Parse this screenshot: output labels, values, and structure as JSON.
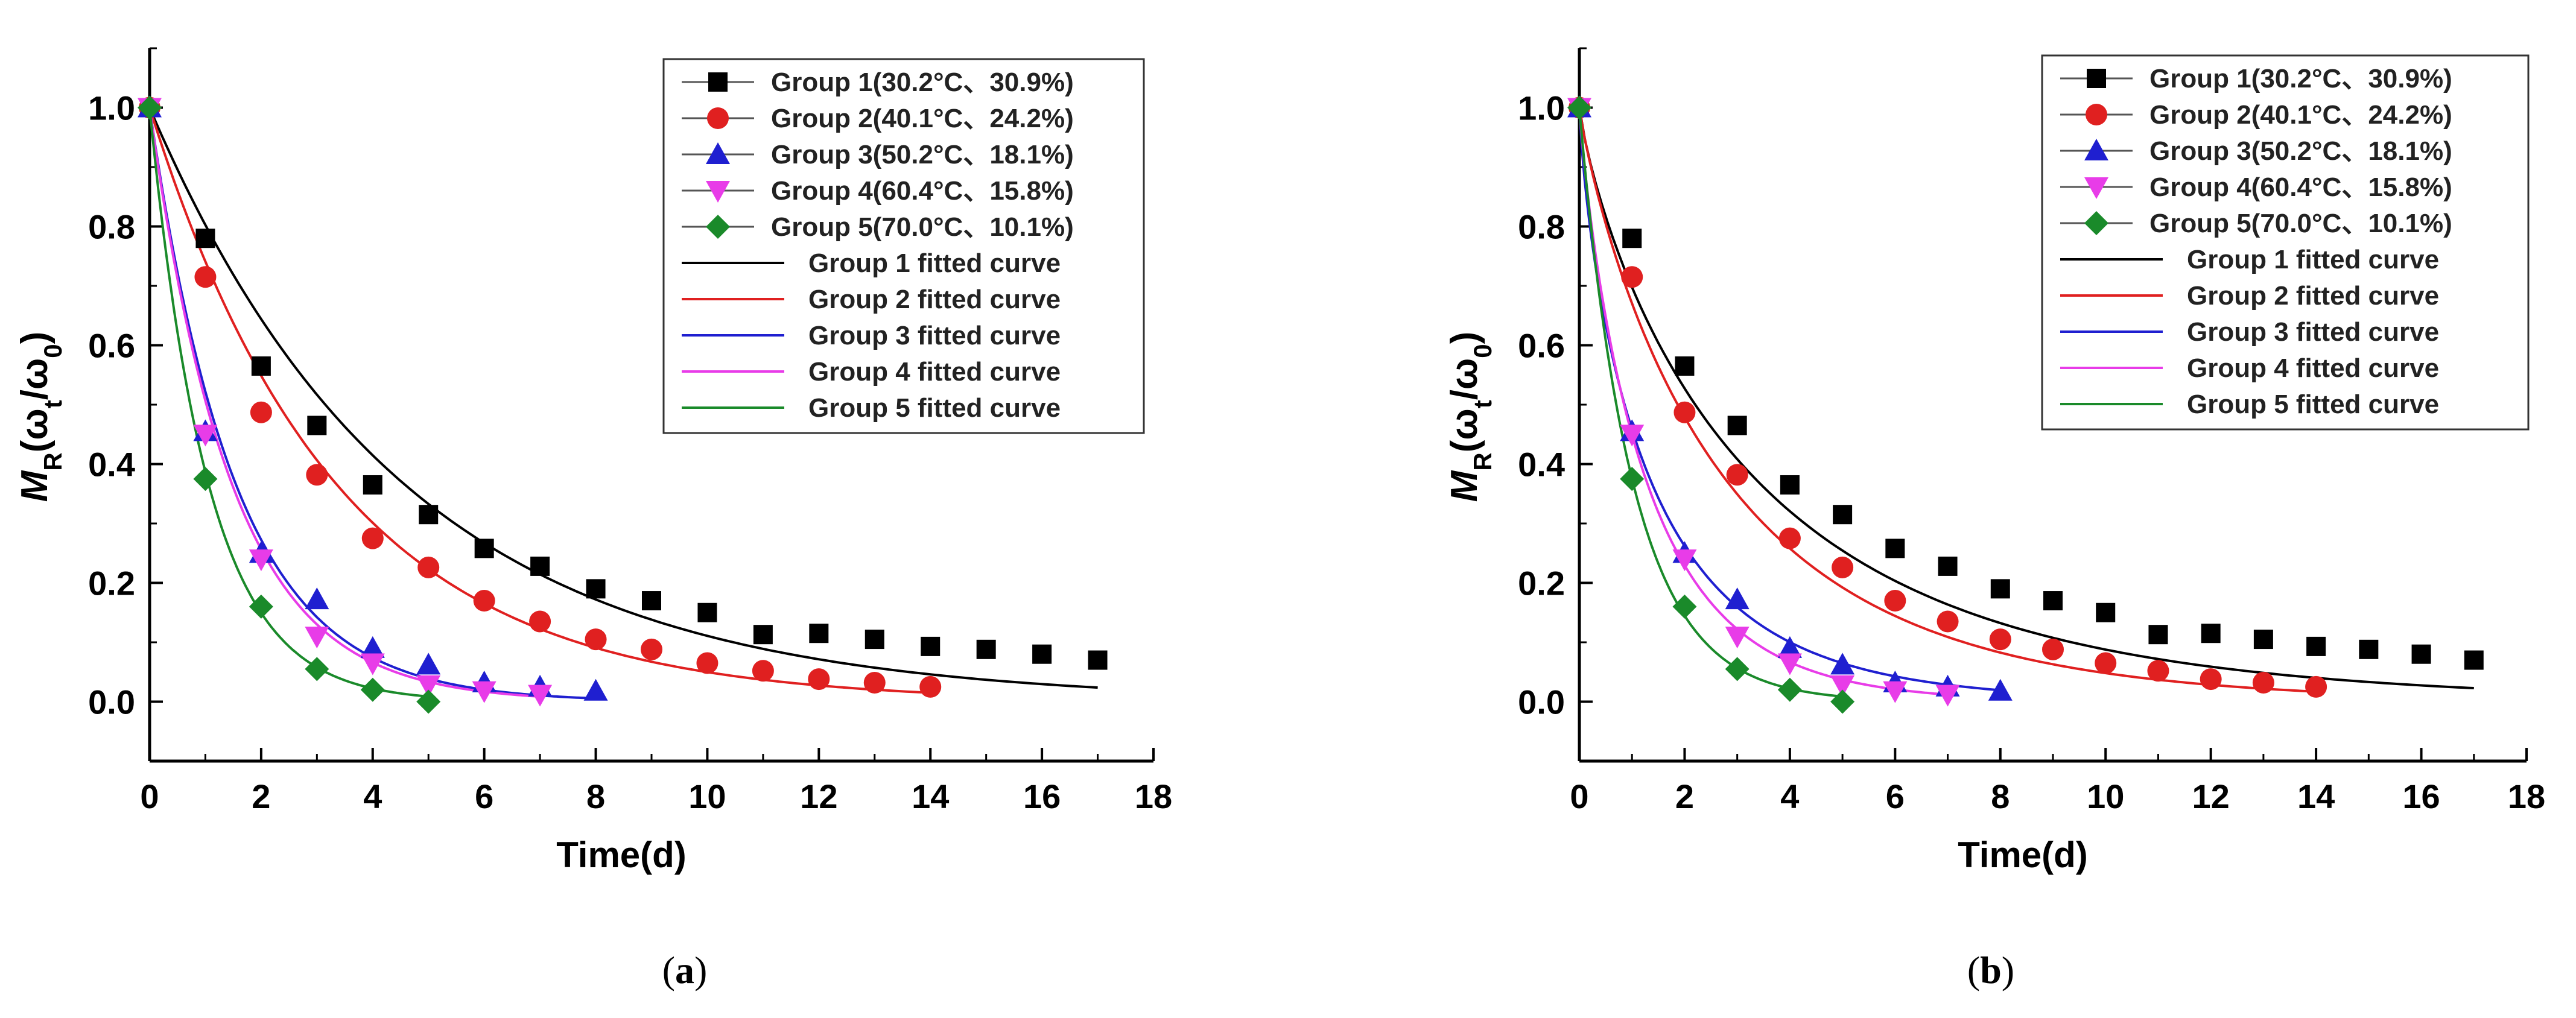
{
  "chart_data": [
    {
      "type": "scatter",
      "panel_label": "a",
      "xlabel": "Time(d)",
      "ylabel": "M_R(ω_t/ω_0)",
      "xlim": [
        0,
        18
      ],
      "ylim": [
        -0.1,
        1.1
      ],
      "xticks": [
        "0",
        "2",
        "4",
        "6",
        "8",
        "10",
        "12",
        "14",
        "16",
        "18"
      ],
      "yticks": [
        "0.0",
        "0.2",
        "0.4",
        "0.6",
        "0.8",
        "1.0"
      ],
      "series": [
        {
          "name": "Group 1(30.2°C、30.9%)",
          "color": "#000000",
          "marker": "square",
          "x": [
            0,
            1,
            2,
            3,
            4,
            5,
            6,
            7,
            8,
            9,
            10,
            11,
            12,
            13,
            14,
            15,
            16,
            17
          ],
          "y": [
            1.0,
            0.78,
            0.565,
            0.465,
            0.365,
            0.315,
            0.258,
            0.228,
            0.19,
            0.17,
            0.15,
            0.113,
            0.115,
            0.105,
            0.093,
            0.088,
            0.08,
            0.07
          ]
        },
        {
          "name": "Group 2(40.1°C、24.2%)",
          "color": "#e02020",
          "marker": "circle",
          "x": [
            0,
            1,
            2,
            3,
            4,
            5,
            6,
            7,
            8,
            9,
            10,
            11,
            12,
            13,
            14
          ],
          "y": [
            1.0,
            0.715,
            0.487,
            0.382,
            0.275,
            0.226,
            0.17,
            0.135,
            0.105,
            0.088,
            0.065,
            0.052,
            0.038,
            0.032,
            0.025
          ]
        },
        {
          "name": "Group 3(50.2°C、18.1%)",
          "color": "#1f1fd0",
          "marker": "triangle-up",
          "x": [
            0,
            1,
            2,
            3,
            4,
            5,
            6,
            7,
            8
          ],
          "y": [
            1.0,
            0.455,
            0.25,
            0.172,
            0.09,
            0.062,
            0.032,
            0.025,
            0.018
          ]
        },
        {
          "name": "Group 4(60.4°C、15.8%)",
          "color": "#e83ce8",
          "marker": "triangle-down",
          "x": [
            0,
            1,
            2,
            3,
            4,
            5,
            6,
            7
          ],
          "y": [
            1.0,
            0.45,
            0.24,
            0.11,
            0.065,
            0.028,
            0.018,
            0.012
          ]
        },
        {
          "name": "Group 5(70.0°C、10.1%)",
          "color": "#1a8a2a",
          "marker": "diamond",
          "x": [
            0,
            1,
            2,
            3,
            4,
            5
          ],
          "y": [
            1.0,
            0.375,
            0.16,
            0.055,
            0.02,
            0.0
          ]
        }
      ],
      "fitted_curves": [
        {
          "name": "Group 1 fitted curve",
          "color": "#000000",
          "k": 0.22,
          "n": 1.0,
          "xmax": 17
        },
        {
          "name": "Group 2 fitted curve",
          "color": "#e02020",
          "k": 0.3,
          "n": 1.0,
          "xmax": 14
        },
        {
          "name": "Group 3 fitted curve",
          "color": "#1f1fd0",
          "k": 0.65,
          "n": 1.0,
          "xmax": 8
        },
        {
          "name": "Group 4 fitted curve",
          "color": "#e83ce8",
          "k": 0.68,
          "n": 1.0,
          "xmax": 7
        },
        {
          "name": "Group 5 fitted curve",
          "color": "#1a8a2a",
          "k": 0.95,
          "n": 1.0,
          "xmax": 5
        }
      ]
    },
    {
      "type": "scatter",
      "panel_label": "b",
      "xlabel": "Time(d)",
      "ylabel": "M_R(ω_t/ω_0)",
      "xlim": [
        0,
        18
      ],
      "ylim": [
        -0.1,
        1.1
      ],
      "xticks": [
        "0",
        "2",
        "4",
        "6",
        "8",
        "10",
        "12",
        "14",
        "16",
        "18"
      ],
      "yticks": [
        "0.0",
        "0.2",
        "0.4",
        "0.6",
        "0.8",
        "1.0"
      ],
      "series": [
        {
          "name": "Group 1(30.2°C、30.9%)",
          "color": "#000000",
          "marker": "square",
          "x": [
            0,
            1,
            2,
            3,
            4,
            5,
            6,
            7,
            8,
            9,
            10,
            11,
            12,
            13,
            14,
            15,
            16,
            17
          ],
          "y": [
            1.0,
            0.78,
            0.565,
            0.465,
            0.365,
            0.315,
            0.258,
            0.228,
            0.19,
            0.17,
            0.15,
            0.113,
            0.115,
            0.105,
            0.093,
            0.088,
            0.08,
            0.07
          ]
        },
        {
          "name": "Group 2(40.1°C、24.2%)",
          "color": "#e02020",
          "marker": "circle",
          "x": [
            0,
            1,
            2,
            3,
            4,
            5,
            6,
            7,
            8,
            9,
            10,
            11,
            12,
            13,
            14
          ],
          "y": [
            1.0,
            0.715,
            0.487,
            0.382,
            0.275,
            0.226,
            0.17,
            0.135,
            0.105,
            0.088,
            0.065,
            0.052,
            0.038,
            0.032,
            0.025
          ]
        },
        {
          "name": "Group 3(50.2°C、18.1%)",
          "color": "#1f1fd0",
          "marker": "triangle-up",
          "x": [
            0,
            1,
            2,
            3,
            4,
            5,
            6,
            7,
            8
          ],
          "y": [
            1.0,
            0.455,
            0.25,
            0.172,
            0.09,
            0.062,
            0.032,
            0.025,
            0.018
          ]
        },
        {
          "name": "Group 4(60.4°C、15.8%)",
          "color": "#e83ce8",
          "marker": "triangle-down",
          "x": [
            0,
            1,
            2,
            3,
            4,
            5,
            6,
            7
          ],
          "y": [
            1.0,
            0.45,
            0.24,
            0.11,
            0.065,
            0.028,
            0.018,
            0.012
          ]
        },
        {
          "name": "Group 5(70.0°C、10.1%)",
          "color": "#1a8a2a",
          "marker": "diamond",
          "x": [
            0,
            1,
            2,
            3,
            4,
            5
          ],
          "y": [
            1.0,
            0.375,
            0.16,
            0.055,
            0.02,
            0.0
          ]
        }
      ],
      "fitted_curves": [
        {
          "name": "Group 1 fitted curve",
          "color": "#000000",
          "k": 0.36,
          "n": 0.83,
          "xmax": 17
        },
        {
          "name": "Group 2 fitted curve",
          "color": "#e02020",
          "k": 0.4,
          "n": 0.88,
          "xmax": 14
        },
        {
          "name": "Group 3 fitted curve",
          "color": "#1f1fd0",
          "k": 0.78,
          "n": 0.78,
          "xmax": 8
        },
        {
          "name": "Group 4 fitted curve",
          "color": "#e83ce8",
          "k": 0.8,
          "n": 0.88,
          "xmax": 7
        },
        {
          "name": "Group 5 fitted curve",
          "color": "#1a8a2a",
          "k": 0.98,
          "n": 0.98,
          "xmax": 5
        }
      ]
    }
  ]
}
